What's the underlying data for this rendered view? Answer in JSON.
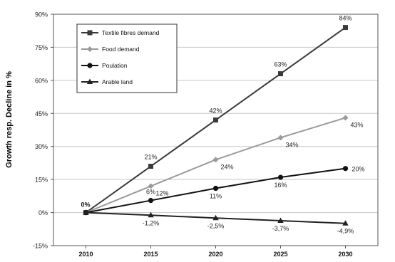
{
  "chart_data": {
    "type": "line",
    "title": "",
    "xlabel": "",
    "ylabel": "Growth resp. Decline in %",
    "categories": [
      "2010",
      "2015",
      "2020",
      "2025",
      "2030"
    ],
    "ylim": [
      -15,
      90
    ],
    "yticks": [
      -15,
      0,
      15,
      30,
      45,
      60,
      75,
      90
    ],
    "ytick_labels": [
      "-15%",
      "0%",
      "15%",
      "30%",
      "45%",
      "60%",
      "75%",
      "90%"
    ],
    "grid": true,
    "legend_position": "top-left",
    "origin_label": "0%",
    "series": [
      {
        "name": "Textile fibres demand",
        "values": [
          0,
          21,
          42,
          63,
          84
        ],
        "labels": [
          "",
          "21%",
          "42%",
          "63%",
          "84%"
        ],
        "color": "#3a3a3a",
        "marker": "square"
      },
      {
        "name": "Food demand",
        "values": [
          0,
          12,
          24,
          34,
          43
        ],
        "labels": [
          "",
          "12%",
          "24%",
          "34%",
          "43%"
        ],
        "color": "#9a9a9a",
        "marker": "diamond"
      },
      {
        "name": "Poulation",
        "values": [
          0,
          5.5,
          11,
          16,
          20
        ],
        "labels": [
          "",
          "6%",
          "11%",
          "16%",
          "20%"
        ],
        "color": "#111111",
        "marker": "circle"
      },
      {
        "name": "Arable land",
        "values": [
          0,
          -1.2,
          -2.5,
          -3.7,
          -4.9
        ],
        "labels": [
          "",
          "-1,2%",
          "-2,5%",
          "-3,7%",
          "-4,9%"
        ],
        "color": "#222222",
        "marker": "triangle"
      }
    ]
  }
}
